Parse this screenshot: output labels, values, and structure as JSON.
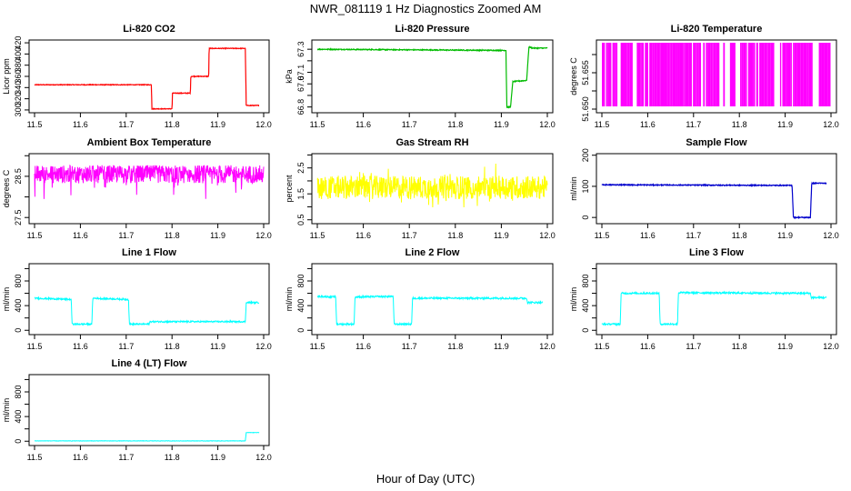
{
  "figure": {
    "title": "NWR_081119  1 Hz Diagnostics Zoomed AM",
    "xlabel": "Hour of Day (UTC)"
  },
  "chart_data": [
    {
      "type": "line",
      "title": "Li-820 CO2",
      "ylabel": "Licor ppm",
      "color": "#ff0000",
      "xlim": [
        11.5,
        12.0
      ],
      "ylim": [
        295,
        425
      ],
      "xticks": [
        "11.5",
        "11.6",
        "11.7",
        "11.8",
        "11.9",
        "12.0"
      ],
      "yticks": [
        300,
        320,
        340,
        360,
        380,
        400,
        420
      ],
      "ytick_labels": [
        "300",
        "320",
        "340",
        "360",
        "380",
        "400",
        "420"
      ],
      "x": [
        11.5,
        11.755,
        11.756,
        11.8,
        11.801,
        11.84,
        11.841,
        11.88,
        11.881,
        11.96,
        11.962,
        11.99
      ],
      "y": [
        345,
        345,
        302,
        302,
        330,
        330,
        360,
        360,
        410,
        410,
        308,
        308
      ],
      "noise": 0.6
    },
    {
      "type": "line",
      "title": "Li-820 Pressure",
      "ylabel": "kPa",
      "color": "#00bb00",
      "xlim": [
        11.5,
        12.0
      ],
      "ylim": [
        66.75,
        67.38
      ],
      "xticks": [
        "11.5",
        "11.6",
        "11.7",
        "11.8",
        "11.9",
        "12.0"
      ],
      "yticks": [
        66.8,
        66.9,
        67.0,
        67.1,
        67.2,
        67.3
      ],
      "ytick_labels": [
        "66.8",
        "",
        "67.0",
        "67.1",
        "",
        "67.3"
      ],
      "x": [
        11.5,
        11.7,
        11.91,
        11.912,
        11.92,
        11.925,
        11.955,
        11.96,
        11.968,
        12.0
      ],
      "y": [
        67.3,
        67.295,
        67.29,
        66.8,
        66.8,
        67.02,
        67.03,
        67.32,
        67.31,
        67.31
      ],
      "noise": 0.004
    },
    {
      "type": "line",
      "title": "Li-820 Temperature",
      "ylabel": "degrees C",
      "color": "#ff00ff",
      "xlim": [
        11.5,
        12.0
      ],
      "ylim": [
        51.6496,
        51.6576
      ],
      "xticks": [
        "11.5",
        "11.6",
        "11.7",
        "11.8",
        "11.9",
        "12.0"
      ],
      "yticks": [
        51.65,
        51.652,
        51.654,
        51.656
      ],
      "ytick_labels": [
        "51.650",
        "",
        "51.655",
        ""
      ],
      "x": [
        11.5,
        12.0
      ],
      "y": [
        51.6503,
        51.6573
      ],
      "noise": 0
    },
    {
      "type": "line",
      "title": "Ambient Box Temperature",
      "ylabel": "degrees C",
      "color": "#ff00ff",
      "xlim": [
        11.5,
        12.0
      ],
      "ylim": [
        27.35,
        29.05
      ],
      "xticks": [
        "11.5",
        "11.6",
        "11.7",
        "11.8",
        "11.9",
        "12.0"
      ],
      "yticks": [
        27.5,
        28.0,
        28.5,
        29.0
      ],
      "ytick_labels": [
        "27.5",
        "",
        "28.5",
        ""
      ],
      "x": [
        11.5,
        12.0
      ],
      "y": [
        28.55,
        28.55
      ],
      "noise": 0.22
    },
    {
      "type": "line",
      "title": "Gas Stream RH",
      "ylabel": "percent",
      "color": "#ffff00",
      "xlim": [
        11.5,
        12.0
      ],
      "ylim": [
        0.35,
        3.05
      ],
      "xticks": [
        "11.5",
        "11.6",
        "11.7",
        "11.8",
        "11.9",
        "12.0"
      ],
      "yticks": [
        0.5,
        1.0,
        1.5,
        2.0,
        2.5,
        3.0
      ],
      "ytick_labels": [
        "0.5",
        "",
        "1.5",
        "",
        "2.5",
        ""
      ],
      "x": [
        11.5,
        12.0
      ],
      "y": [
        1.75,
        1.75
      ],
      "noise": 0.45
    },
    {
      "type": "line",
      "title": "Sample Flow",
      "ylabel": "ml/min",
      "color": "#0000cc",
      "xlim": [
        11.5,
        12.0
      ],
      "ylim": [
        -20,
        205
      ],
      "xticks": [
        "11.5",
        "11.6",
        "11.7",
        "11.8",
        "11.9",
        "12.0"
      ],
      "yticks": [
        0,
        100,
        200
      ],
      "ytick_labels": [
        "0",
        "100",
        "200"
      ],
      "x": [
        11.5,
        11.9,
        11.915,
        11.918,
        11.955,
        11.958,
        11.99
      ],
      "y": [
        105,
        103,
        103,
        0,
        0,
        110,
        110
      ],
      "noise": 1.5
    },
    {
      "type": "line",
      "title": "Line 1 Flow",
      "ylabel": "ml/min",
      "color": "#00ffff",
      "xlim": [
        11.5,
        12.0
      ],
      "ylim": [
        -70,
        1080
      ],
      "xticks": [
        "11.5",
        "11.6",
        "11.7",
        "11.8",
        "11.9",
        "12.0"
      ],
      "yticks": [
        0,
        200,
        400,
        600,
        800,
        1000
      ],
      "ytick_labels": [
        "0",
        "",
        "400",
        "",
        "800",
        ""
      ],
      "x": [
        11.5,
        11.58,
        11.582,
        11.625,
        11.627,
        11.705,
        11.707,
        11.75,
        11.752,
        11.96,
        11.962,
        11.99
      ],
      "y": [
        520,
        500,
        100,
        100,
        520,
        500,
        100,
        100,
        140,
        140,
        450,
        450
      ],
      "noise": 12
    },
    {
      "type": "line",
      "title": "Line 2 Flow",
      "ylabel": "ml/min",
      "color": "#00ffff",
      "xlim": [
        11.5,
        12.0
      ],
      "ylim": [
        -70,
        1080
      ],
      "xticks": [
        "11.5",
        "11.6",
        "11.7",
        "11.8",
        "11.9",
        "12.0"
      ],
      "yticks": [
        0,
        200,
        400,
        600,
        800,
        1000
      ],
      "ytick_labels": [
        "0",
        "",
        "400",
        "",
        "800",
        ""
      ],
      "x": [
        11.5,
        11.54,
        11.542,
        11.58,
        11.582,
        11.665,
        11.667,
        11.705,
        11.707,
        11.955,
        11.957,
        11.99
      ],
      "y": [
        550,
        540,
        100,
        100,
        540,
        550,
        100,
        100,
        520,
        520,
        450,
        450
      ],
      "noise": 14
    },
    {
      "type": "line",
      "title": "Line 3 Flow",
      "ylabel": "ml/min",
      "color": "#00ffff",
      "xlim": [
        11.5,
        12.0
      ],
      "ylim": [
        -70,
        1080
      ],
      "xticks": [
        "11.5",
        "11.6",
        "11.7",
        "11.8",
        "11.9",
        "12.0"
      ],
      "yticks": [
        0,
        200,
        400,
        600,
        800,
        1000
      ],
      "ytick_labels": [
        "0",
        "",
        "400",
        "",
        "800",
        ""
      ],
      "x": [
        11.5,
        11.54,
        11.542,
        11.625,
        11.627,
        11.665,
        11.667,
        11.955,
        11.957,
        11.99
      ],
      "y": [
        100,
        100,
        600,
        600,
        100,
        100,
        610,
        600,
        530,
        530
      ],
      "noise": 14
    },
    {
      "type": "line",
      "title": "Line 4 (LT) Flow",
      "ylabel": "ml/min",
      "color": "#00ffff",
      "xlim": [
        11.5,
        12.0
      ],
      "ylim": [
        -70,
        1080
      ],
      "xticks": [
        "11.5",
        "11.6",
        "11.7",
        "11.8",
        "11.9",
        "12.0"
      ],
      "yticks": [
        0,
        200,
        400,
        600,
        800,
        1000
      ],
      "ytick_labels": [
        "0",
        "",
        "400",
        "",
        "800",
        ""
      ],
      "x": [
        11.5,
        11.96,
        11.962,
        11.99
      ],
      "y": [
        5,
        5,
        140,
        140
      ],
      "noise": 3
    }
  ]
}
